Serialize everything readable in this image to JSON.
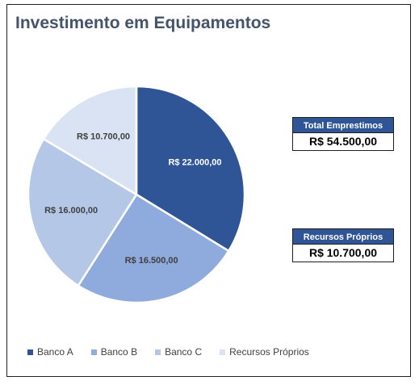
{
  "chart_data": {
    "type": "pie",
    "title": "Investimento em Equipamentos",
    "categories": [
      "Banco A",
      "Banco B",
      "Banco C",
      "Recursos Próprios"
    ],
    "values": [
      22000,
      16500,
      16000,
      10700
    ],
    "value_labels": [
      "R$ 22.000,00",
      "R$ 16.500,00",
      "R$ 16.000,00",
      "R$ 10.700,00"
    ],
    "colors": [
      "#2f5597",
      "#8faadc",
      "#b4c7e7",
      "#dae3f3"
    ],
    "label_colors": [
      "#ffffff",
      "#404040",
      "#404040",
      "#404040"
    ],
    "legend_position": "bottom"
  },
  "kpis": {
    "total": {
      "label": "Total Emprestimos",
      "value": "R$ 54.500,00"
    },
    "own": {
      "label": "Recursos Próprios",
      "value": "R$ 10.700,00"
    }
  }
}
